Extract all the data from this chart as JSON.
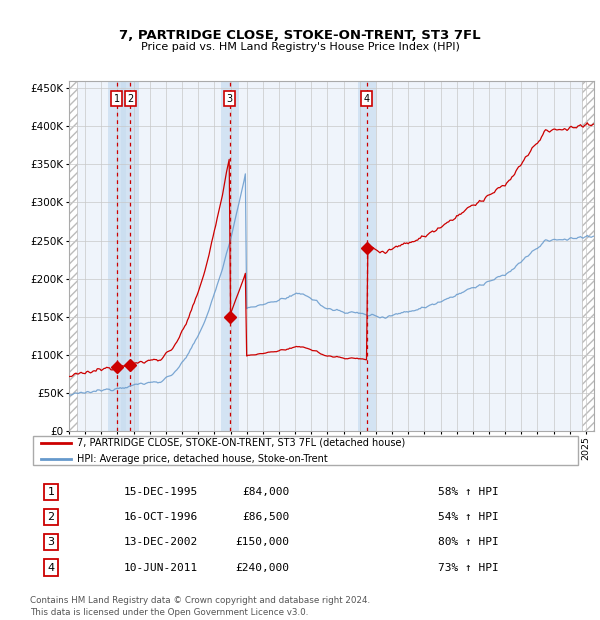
{
  "title": "7, PARTRIDGE CLOSE, STOKE-ON-TRENT, ST3 7FL",
  "subtitle": "Price paid vs. HM Land Registry's House Price Index (HPI)",
  "ylim": [
    0,
    460000
  ],
  "yticks": [
    0,
    50000,
    100000,
    150000,
    200000,
    250000,
    300000,
    350000,
    400000,
    450000
  ],
  "ytick_labels": [
    "£0",
    "£50K",
    "£100K",
    "£150K",
    "£200K",
    "£250K",
    "£300K",
    "£350K",
    "£400K",
    "£450K"
  ],
  "xlim_start": 1993.0,
  "xlim_end": 2025.5,
  "sale_date_floats": [
    1995.958,
    1996.792,
    2002.958,
    2011.442
  ],
  "sale_prices": [
    84000,
    86500,
    150000,
    240000
  ],
  "sale_labels": [
    "1",
    "2",
    "3",
    "4"
  ],
  "legend_line1": "7, PARTRIDGE CLOSE, STOKE-ON-TRENT, ST3 7FL (detached house)",
  "legend_line2": "HPI: Average price, detached house, Stoke-on-Trent",
  "table_data": [
    {
      "num": "1",
      "date": "15-DEC-1995",
      "price": "£84,000",
      "hpi": "58% ↑ HPI"
    },
    {
      "num": "2",
      "date": "16-OCT-1996",
      "price": "£86,500",
      "hpi": "54% ↑ HPI"
    },
    {
      "num": "3",
      "date": "13-DEC-2002",
      "price": "£150,000",
      "hpi": "80% ↑ HPI"
    },
    {
      "num": "4",
      "date": "10-JUN-2011",
      "price": "£240,000",
      "hpi": "73% ↑ HPI"
    }
  ],
  "footer": "Contains HM Land Registry data © Crown copyright and database right 2024.\nThis data is licensed under the Open Government Licence v3.0.",
  "line_color_sold": "#cc0000",
  "line_color_hpi": "#6699cc",
  "bg_hatch_color": "#dde8f8",
  "sale_band_color": "#ddeeff"
}
